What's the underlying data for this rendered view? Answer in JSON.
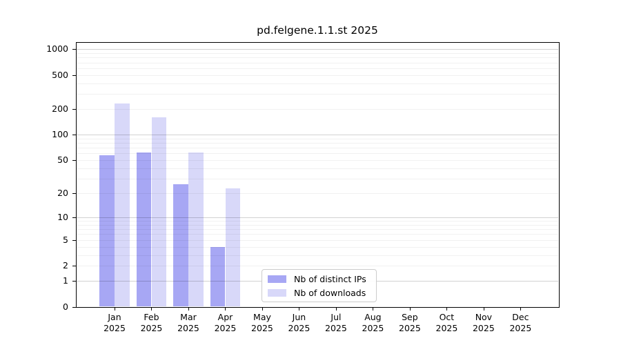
{
  "title": "pd.felgene.1.1.st 2025",
  "colors": {
    "distinct_ips_bar": "#a7a7f4",
    "downloads_bar": "#d8d8f9",
    "grid_major": "rgba(0,0,0,0.18)",
    "grid_minor": "rgba(0,0,0,0.055)",
    "axis": "#000000",
    "legend_border": "#cccccc"
  },
  "chart_data": {
    "type": "bar",
    "title": "pd.felgene.1.1.st 2025",
    "categories": [
      "Jan 2025",
      "Feb 2025",
      "Mar 2025",
      "Apr 2025",
      "May 2025",
      "Jun 2025",
      "Jul 2025",
      "Aug 2025",
      "Sep 2025",
      "Oct 2025",
      "Nov 2025",
      "Dec 2025"
    ],
    "series": [
      {
        "name": "Nb of distinct IPs",
        "values": [
          57,
          62,
          26,
          4,
          0,
          0,
          0,
          0,
          0,
          0,
          0,
          0
        ]
      },
      {
        "name": "Nb of downloads",
        "values": [
          233,
          159,
          62,
          23,
          0,
          0,
          0,
          0,
          0,
          0,
          0,
          0
        ]
      }
    ],
    "yticks": [
      0,
      1,
      2,
      5,
      10,
      20,
      50,
      100,
      200,
      500,
      1000
    ],
    "yscale": "log10(1+v)",
    "ylim": [
      0,
      1224
    ],
    "grid": "horizontal, major at decades 1/10/100/1000 plus faint minors",
    "legend_position": "inside bottom-center"
  }
}
